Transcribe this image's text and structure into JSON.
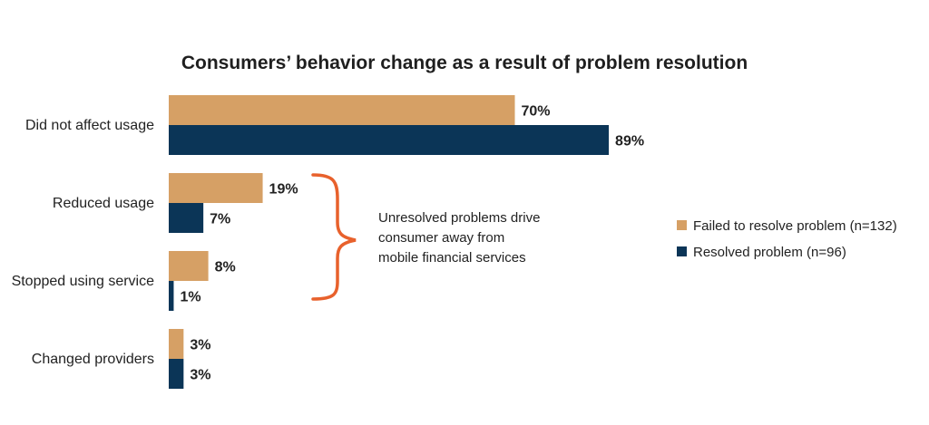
{
  "chart_data": {
    "type": "bar",
    "orientation": "horizontal",
    "title": "Consumers’ behavior change as a result of problem resolution",
    "categories": [
      "Did not affect usage",
      "Reduced usage",
      "Stopped using service",
      "Changed providers"
    ],
    "series": [
      {
        "name": "Failed to resolve problem (n=132)",
        "values": [
          70,
          19,
          8,
          3
        ],
        "labels": [
          "70%",
          "19%",
          "8%",
          "3%"
        ],
        "color": "#d6a065"
      },
      {
        "name": "Resolved problem (n=96)",
        "values": [
          89,
          7,
          1,
          3
        ],
        "labels": [
          "89%",
          "7%",
          "1%",
          "3%"
        ],
        "color": "#0b3557"
      }
    ],
    "xlim": [
      0,
      100
    ],
    "grid": false,
    "legend_position": "right",
    "annotation": {
      "lines": [
        "Unresolved problems drive",
        "consumer away from",
        "mobile financial services"
      ],
      "bracket_color": "#e8612c",
      "spans_categories": [
        "Reduced usage",
        "Stopped using service"
      ]
    }
  }
}
